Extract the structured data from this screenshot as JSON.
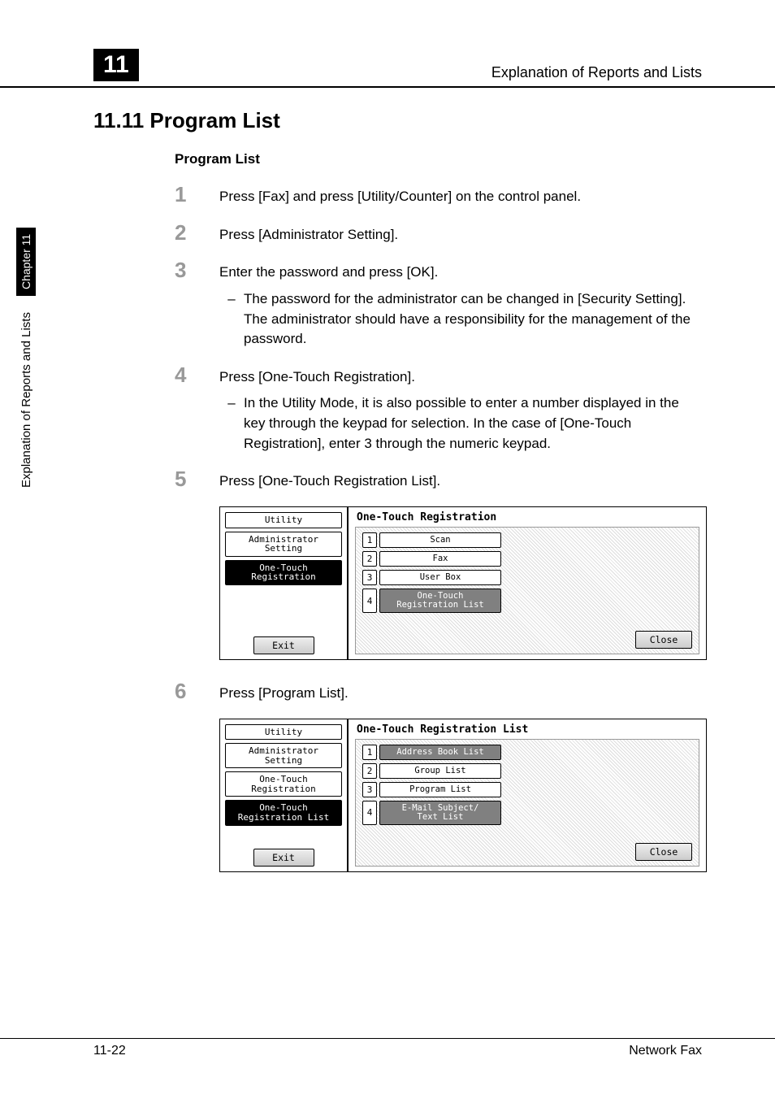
{
  "header": {
    "chapter_number": "11",
    "header_title": "Explanation of Reports and Lists"
  },
  "side_tab": {
    "label": "Explanation of Reports and Lists",
    "chapter": "Chapter 11"
  },
  "section": {
    "title": "11.11 Program List",
    "subtitle": "Program List"
  },
  "steps": {
    "s1": {
      "num": "1",
      "text": "Press [Fax] and press [Utility/Counter] on the control panel."
    },
    "s2": {
      "num": "2",
      "text": "Press [Administrator Setting]."
    },
    "s3": {
      "num": "3",
      "text": "Enter the password and press [OK].",
      "sub": "The password for the administrator can be changed in [Security Setting]. The administrator should have a responsibility for the management of the password."
    },
    "s4": {
      "num": "4",
      "text": "Press [One-Touch Registration].",
      "sub": "In the Utility Mode, it is also possible to enter a number displayed in the key through the keypad for selection. In the case of [One-Touch Registration], enter 3 through the numeric keypad."
    },
    "s5": {
      "num": "5",
      "text": "Press [One-Touch Registration List]."
    },
    "s6": {
      "num": "6",
      "text": "Press [Program List]."
    }
  },
  "screenshot1": {
    "title": "One-Touch Registration",
    "breadcrumbs": {
      "b1": "Utility",
      "b2": "Administrator\nSetting",
      "b3": "One-Touch\nRegistration"
    },
    "menu": {
      "m1": {
        "n": "1",
        "label": "Scan"
      },
      "m2": {
        "n": "2",
        "label": "Fax"
      },
      "m3": {
        "n": "3",
        "label": "User Box"
      },
      "m4": {
        "n": "4",
        "label": "One-Touch\nRegistration List"
      }
    },
    "exit": "Exit",
    "close": "Close"
  },
  "screenshot2": {
    "title": "One-Touch Registration List",
    "breadcrumbs": {
      "b1": "Utility",
      "b2": "Administrator\nSetting",
      "b3": "One-Touch\nRegistration",
      "b4": "One-Touch\nRegistration List"
    },
    "menu": {
      "m1": {
        "n": "1",
        "label": "Address Book List"
      },
      "m2": {
        "n": "2",
        "label": "Group List"
      },
      "m3": {
        "n": "3",
        "label": "Program List"
      },
      "m4": {
        "n": "4",
        "label": "E-Mail Subject/\nText List"
      }
    },
    "exit": "Exit",
    "close": "Close"
  },
  "footer": {
    "page": "11-22",
    "doc": "Network Fax"
  }
}
